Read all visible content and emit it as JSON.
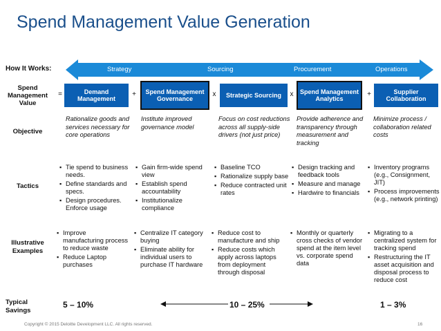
{
  "title": "Spend Management Value Generation",
  "how_it_works": {
    "label": "How It Works:",
    "stages": [
      "Strategy",
      "Sourcing",
      "Procurement",
      "Operations"
    ]
  },
  "rows": {
    "spend_value": "Spend Management Value",
    "objective": "Objective",
    "tactics": "Tactics",
    "examples": "Illustrative Examples",
    "savings": "Typical Savings"
  },
  "equation": {
    "operators": [
      "=",
      "+",
      "x",
      "x",
      "+"
    ],
    "boxes": [
      "Demand Management",
      "Spend Management Governance",
      "Strategic Sourcing",
      "Spend Management Analytics",
      "Supplier Collaboration"
    ]
  },
  "objectives": [
    "Rationalize goods and services necessary for core operations",
    "Institute improved governance model",
    "Focus on cost reductions across all supply-side drivers (not just price)",
    "Provide adherence and transparency through measurement and tracking",
    "Minimize process / collaboration related costs"
  ],
  "tactics": [
    [
      "Tie spend to business needs.",
      "Define standards and specs.",
      "Design procedures. Enforce usage"
    ],
    [
      "Gain firm-wide spend view",
      "Establish spend accountability",
      "Institutionalize compliance"
    ],
    [
      "Baseline TCO",
      "Rationalize supply base",
      "Reduce contracted unit rates"
    ],
    [
      "Design tracking and feedback tools",
      "Measure and manage",
      "Hardwire to financials"
    ],
    [
      "Inventory programs (e.g., Consignment, JIT)",
      "Process improvements (e.g., network printing)"
    ]
  ],
  "examples": [
    [
      "Improve manufacturing process to reduce waste",
      "Reduce Laptop purchases"
    ],
    [
      "Centralize IT category buying",
      "Eliminate ability for individual users to purchase IT hardware"
    ],
    [
      "Reduce cost to manufacture and ship",
      "Reduce costs which apply across laptops from deployment through disposal"
    ],
    [
      "Monthly or quarterly cross checks of vendor spend at the item level vs. corporate spend data"
    ],
    [
      "Migrating to a centralized system for tracking spend",
      "Restructuring the IT asset acquisition and disposal process to reduce cost"
    ]
  ],
  "savings": [
    "5 – 10%",
    "10 – 25%",
    "1 – 3%"
  ],
  "footer": {
    "copyright": "Copyright © 2015 Deloitte Development LLC. All rights reserved.",
    "page": "16"
  },
  "colors": {
    "title": "#1a4f8b",
    "box": "#0b5fb3",
    "banner": "#1b8ad8"
  }
}
